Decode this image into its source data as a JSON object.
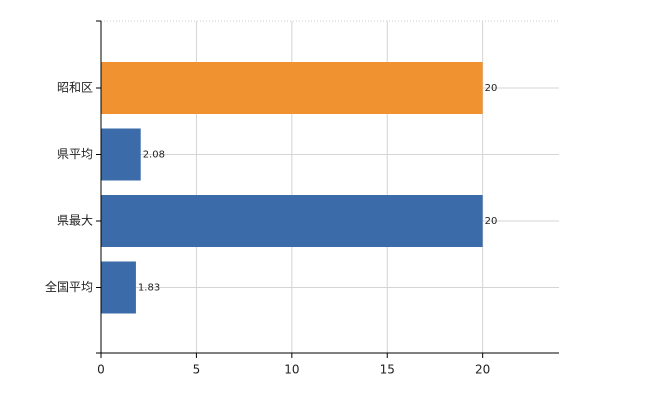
{
  "chart_data": {
    "type": "hbar",
    "categories": [
      "昭和区",
      "県平均",
      "県最大",
      "全国平均"
    ],
    "values": [
      20,
      2.08,
      20,
      1.83
    ],
    "colors": [
      "#f0922f",
      "#3b6ba8",
      "#3b6ba8",
      "#3b6ba8"
    ],
    "xlim": [
      0,
      24
    ],
    "xticks": [
      0,
      5,
      10,
      15,
      20
    ],
    "grid": true
  }
}
